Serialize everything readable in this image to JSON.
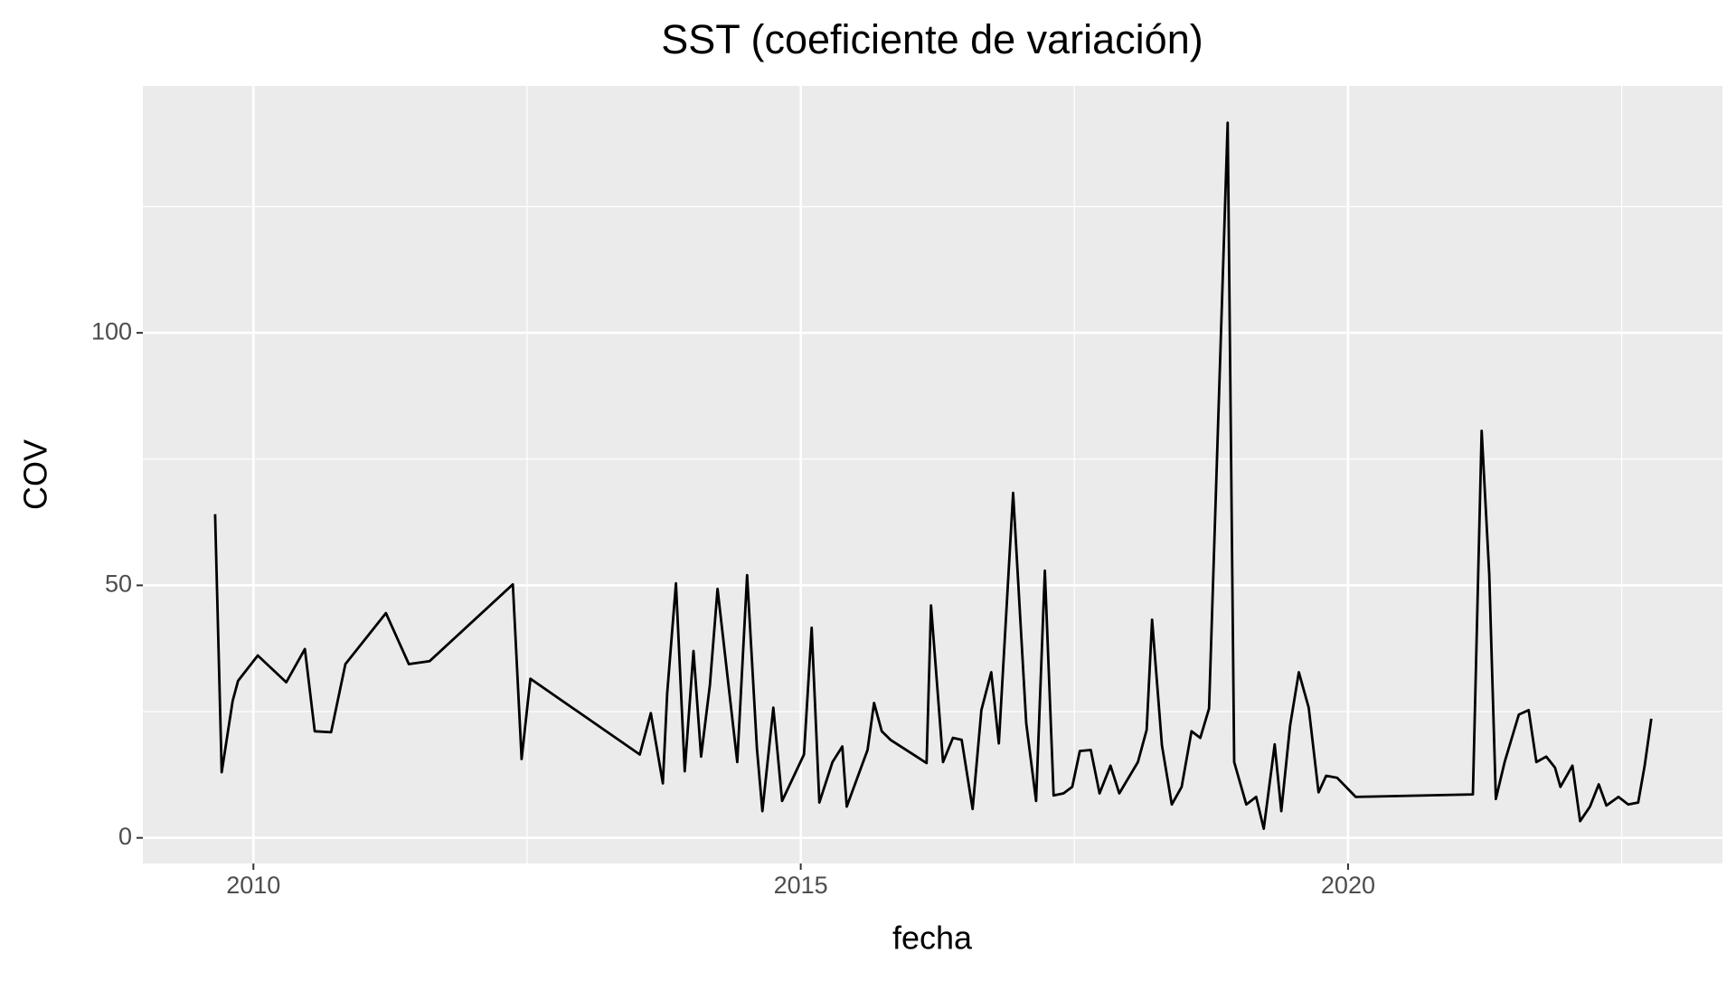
{
  "chart_data": {
    "type": "line",
    "title": "SST (coeficiente de variación)",
    "x_label": "fecha",
    "y_label": "COV",
    "x": [
      2009.65,
      2009.71,
      2009.81,
      2009.86,
      2010.04,
      2010.3,
      2010.47,
      2010.56,
      2010.71,
      2010.84,
      2011.21,
      2011.42,
      2011.61,
      2012.37,
      2012.45,
      2012.53,
      2013.53,
      2013.63,
      2013.74,
      2013.78,
      2013.86,
      2013.94,
      2014.02,
      2014.09,
      2014.17,
      2014.24,
      2014.42,
      2014.51,
      2014.6,
      2014.65,
      2014.75,
      2014.83,
      2015.03,
      2015.1,
      2015.17,
      2015.29,
      2015.38,
      2015.42,
      2015.61,
      2015.67,
      2015.74,
      2015.82,
      2016.15,
      2016.19,
      2016.3,
      2016.39,
      2016.47,
      2016.57,
      2016.65,
      2016.74,
      2016.81,
      2016.94,
      2017.06,
      2017.15,
      2017.23,
      2017.31,
      2017.4,
      2017.48,
      2017.55,
      2017.65,
      2017.73,
      2017.83,
      2017.91,
      2018.08,
      2018.16,
      2018.21,
      2018.3,
      2018.39,
      2018.48,
      2018.57,
      2018.65,
      2018.73,
      2018.9,
      2018.96,
      2019.07,
      2019.16,
      2019.23,
      2019.33,
      2019.39,
      2019.47,
      2019.55,
      2019.64,
      2019.73,
      2019.8,
      2019.9,
      2020.07,
      2021.14,
      2021.22,
      2021.29,
      2021.35,
      2021.43,
      2021.56,
      2021.65,
      2021.72,
      2021.81,
      2021.89,
      2021.94,
      2022.05,
      2022.12,
      2022.21,
      2022.29,
      2022.36,
      2022.47,
      2022.56,
      2022.65,
      2022.71,
      2022.77
    ],
    "series": [
      {
        "name": "COV",
        "color": "#000000",
        "values": [
          64.1,
          13.0,
          27.1,
          31.1,
          36.1,
          30.8,
          37.4,
          21.1,
          20.9,
          34.4,
          44.5,
          34.4,
          35.0,
          50.2,
          15.6,
          31.5,
          16.5,
          24.7,
          10.8,
          28.6,
          50.4,
          13.2,
          37.0,
          16.1,
          30.2,
          49.3,
          15.0,
          52.0,
          17.6,
          5.3,
          25.8,
          7.3,
          16.5,
          41.6,
          7.0,
          15.0,
          18.1,
          6.2,
          17.4,
          26.7,
          21.1,
          19.4,
          14.8,
          46.0,
          15.0,
          19.8,
          19.4,
          5.7,
          25.3,
          32.8,
          18.7,
          68.3,
          22.7,
          7.3,
          52.9,
          8.4,
          8.8,
          10.1,
          17.2,
          17.4,
          8.8,
          14.3,
          8.8,
          15.0,
          21.4,
          43.2,
          18.3,
          6.6,
          10.1,
          21.1,
          19.8,
          25.6,
          141.6,
          15.0,
          6.6,
          8.1,
          1.8,
          18.5,
          5.3,
          22.2,
          32.8,
          25.8,
          9.0,
          12.3,
          11.9,
          8.1,
          8.6,
          80.6,
          52.2,
          7.7,
          15.0,
          24.4,
          25.3,
          15.0,
          16.1,
          13.9,
          10.1,
          14.3,
          3.3,
          6.2,
          10.6,
          6.4,
          8.1,
          6.6,
          7.0,
          14.3,
          23.6
        ]
      }
    ],
    "xlim": [
      2008.99,
      2023.42
    ],
    "ylim": [
      -5.07,
      148.9
    ],
    "xticks": [
      2010,
      2015,
      2020
    ],
    "yticks": [
      0,
      50,
      100
    ],
    "xminor": [
      2012.5,
      2017.5,
      2022.5
    ],
    "yminor": [
      25,
      75,
      125
    ],
    "grid": true,
    "panel_color": "#ebebeb"
  }
}
